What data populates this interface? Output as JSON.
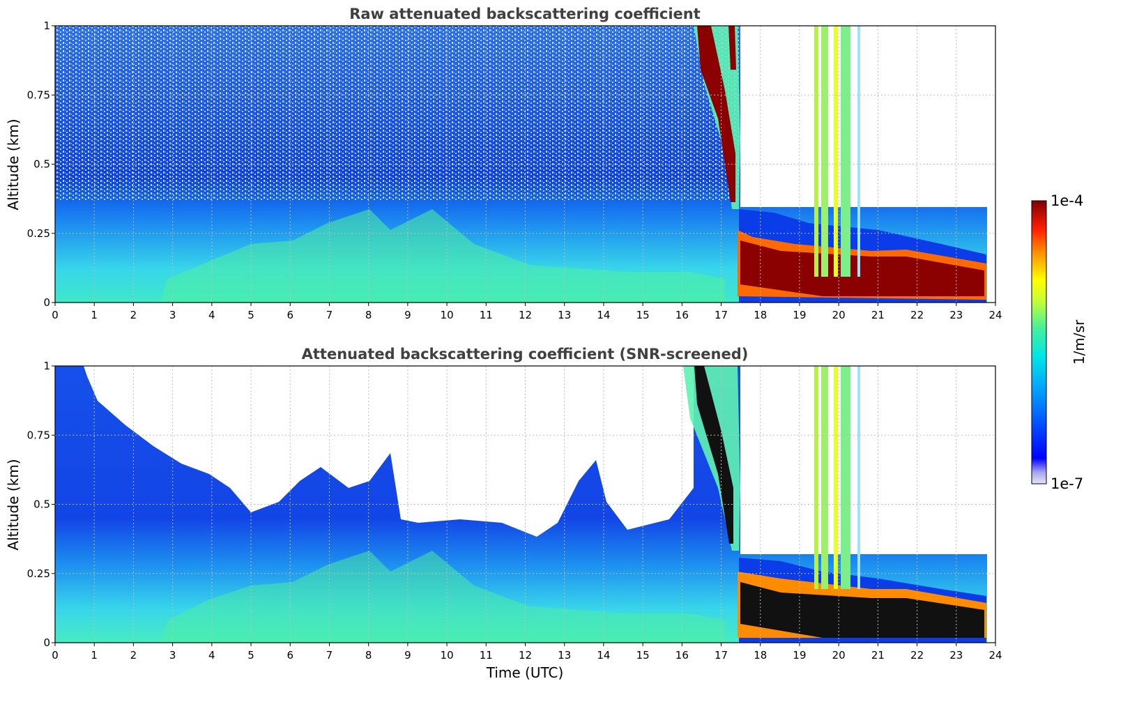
{
  "chart_data": [
    {
      "type": "heatmap",
      "title": "Raw attenuated backscattering coefficient",
      "xlabel": "",
      "ylabel": "Altitude (km)",
      "x_ticks": [
        "0",
        "1",
        "2",
        "3",
        "4",
        "5",
        "6",
        "7",
        "8",
        "9",
        "10",
        "11",
        "12",
        "13",
        "14",
        "15",
        "16",
        "17",
        "18",
        "19",
        "20",
        "21",
        "22",
        "23",
        "24"
      ],
      "y_ticks": [
        "0",
        "0.25",
        "0.5",
        "0.75",
        "1"
      ],
      "xlim": [
        0,
        24
      ],
      "ylim": [
        0,
        1
      ],
      "grid": true,
      "colorscale": "jet, log",
      "features": [
        {
          "x": [
            0,
            16.3
          ],
          "note": "noisy low-signal background with boundary layer aerosol up to ~0.25 km"
        },
        {
          "x": [
            16.3,
            17.5
          ],
          "note": "high backscatter layer descending from ~1 km to ~0.25 km"
        },
        {
          "x": [
            17.5,
            23.8
          ],
          "note": "strong fog/cloud layer between ~0.05 and 0.15 km"
        },
        {
          "x": [
            19.3,
            20.5
          ],
          "note": "vertical streaks full column"
        },
        {
          "x": [
            23.8,
            24
          ],
          "note": "no data"
        }
      ]
    },
    {
      "type": "heatmap",
      "title": "Attenuated backscattering coefficient (SNR-screened)",
      "xlabel": "Time (UTC)",
      "ylabel": "Altitude (km)",
      "x_ticks": [
        "0",
        "1",
        "2",
        "3",
        "4",
        "5",
        "6",
        "7",
        "8",
        "9",
        "10",
        "11",
        "12",
        "13",
        "14",
        "15",
        "16",
        "17",
        "18",
        "19",
        "20",
        "21",
        "22",
        "23",
        "24"
      ],
      "y_ticks": [
        "0",
        "0.25",
        "0.5",
        "0.75",
        "1"
      ],
      "xlim": [
        0,
        24
      ],
      "ylim": [
        0,
        1
      ],
      "grid": true,
      "colorscale": "jet, log",
      "features": [
        {
          "x": [
            0,
            16.3
          ],
          "note": "screened signal top decreasing from ~1 km to ~0.4 km"
        },
        {
          "x": [
            16.3,
            17.5
          ],
          "note": "descending layer, saturated (black) values"
        },
        {
          "x": [
            17.5,
            23.8
          ],
          "note": "saturated fog/cloud layer below ~0.15 km"
        }
      ]
    }
  ],
  "colorbar": {
    "label": "1/m/sr",
    "max_label": "1e-4",
    "min_label": "1e-7",
    "scale": "log"
  }
}
